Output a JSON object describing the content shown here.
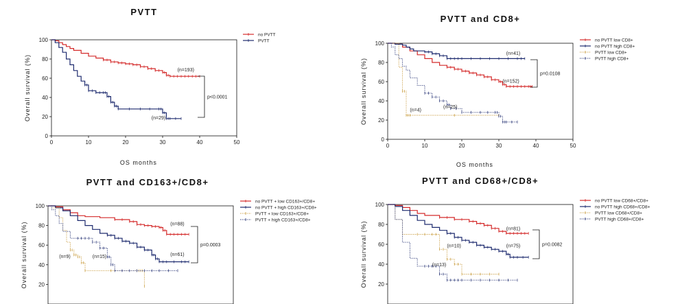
{
  "chart_data": [
    {
      "type": "line",
      "title": "PVTT",
      "xlabel": "OS months",
      "ylabel": "Overall survival (%)",
      "xlim": [
        0,
        50
      ],
      "ylim": [
        0,
        100
      ],
      "xticks": [
        "0",
        "10",
        "20",
        "30",
        "40",
        "50"
      ],
      "yticks": [
        "0",
        "20",
        "40",
        "60",
        "80",
        "100"
      ],
      "legend_position": "top-right",
      "pvalue": "p<0.0001",
      "series": [
        {
          "name": "no PVTT",
          "color": "#d42a2a",
          "style": "solid",
          "x": [
            0,
            1,
            2,
            3,
            4,
            5,
            6,
            8,
            10,
            12,
            14,
            16,
            18,
            20,
            22,
            24,
            26,
            28,
            30,
            31,
            32,
            34,
            36,
            38,
            40
          ],
          "y": [
            100,
            99,
            97,
            95,
            93,
            91,
            89,
            86,
            83,
            81,
            79,
            77,
            76,
            75,
            74,
            72,
            70,
            68,
            66,
            63,
            62,
            62,
            62,
            62,
            62
          ],
          "label": "(n=193)",
          "label_at": [
            34,
            67
          ]
        },
        {
          "name": "PVTT",
          "color": "#1d2a6e",
          "style": "solid",
          "x": [
            0,
            1,
            2,
            3,
            4,
            5,
            6,
            7,
            8,
            9,
            10,
            12,
            14,
            15,
            16,
            17,
            18,
            24,
            29,
            30,
            31,
            32,
            35
          ],
          "y": [
            100,
            97,
            92,
            87,
            80,
            74,
            68,
            62,
            57,
            53,
            47,
            45,
            45,
            41,
            35,
            31,
            28,
            28,
            28,
            24,
            18,
            18,
            18
          ],
          "label": "(n=29)",
          "label_at": [
            27,
            17
          ]
        }
      ]
    },
    {
      "type": "line",
      "title": "PVTT and CD8+",
      "xlabel": "OS months",
      "ylabel": "Overall survival (%)",
      "xlim": [
        0,
        50
      ],
      "ylim": [
        0,
        100
      ],
      "xticks": [
        "0",
        "10",
        "20",
        "30",
        "40",
        "50"
      ],
      "yticks": [
        "0",
        "20",
        "40",
        "60",
        "80",
        "100"
      ],
      "legend_position": "top-right",
      "pvalue": "p=0.0108",
      "series": [
        {
          "name": "no PVTT low CD8+",
          "color": "#d42a2a",
          "style": "solid",
          "x": [
            0,
            2,
            4,
            6,
            8,
            10,
            12,
            14,
            16,
            18,
            20,
            22,
            24,
            26,
            28,
            30,
            31,
            32,
            34,
            36,
            38,
            39
          ],
          "y": [
            100,
            99,
            96,
            92,
            88,
            84,
            80,
            77,
            75,
            73,
            71,
            69,
            67,
            65,
            62,
            60,
            57,
            55,
            55,
            55,
            55,
            55
          ],
          "label": "(n=152)",
          "label_at": [
            31,
            59
          ]
        },
        {
          "name": "no PVTT high CD8+",
          "color": "#1d2a6e",
          "style": "solid",
          "x": [
            0,
            2,
            4,
            5,
            6,
            7,
            10,
            12,
            14,
            16,
            18,
            20,
            25,
            30,
            35,
            37
          ],
          "y": [
            100,
            99,
            98,
            96,
            94,
            92,
            91,
            89,
            87,
            84,
            84,
            84,
            84,
            84,
            84,
            84
          ],
          "label": "(n=41)",
          "label_at": [
            32,
            88
          ]
        },
        {
          "name": "PVTT low CD8+",
          "color": "#c89a3a",
          "style": "dotted",
          "x": [
            0,
            3,
            4,
            5,
            6,
            30
          ],
          "y": [
            100,
            75,
            50,
            25,
            25,
            25
          ],
          "label": "(n=4)",
          "label_at": [
            6,
            29
          ]
        },
        {
          "name": "PVTT high CD8+",
          "color": "#1d2a6e",
          "style": "dotted",
          "x": [
            0,
            1,
            2,
            3,
            4,
            5,
            6,
            8,
            10,
            12,
            14,
            16,
            17,
            20,
            25,
            29,
            30,
            31,
            32,
            35
          ],
          "y": [
            100,
            96,
            88,
            84,
            76,
            72,
            64,
            56,
            48,
            44,
            40,
            36,
            32,
            28,
            28,
            28,
            24,
            18,
            18,
            18
          ],
          "label": "(n=25)",
          "label_at": [
            15,
            32
          ]
        }
      ]
    },
    {
      "type": "line",
      "title": "PVTT and CD163+/CD8+",
      "xlabel": "",
      "ylabel": "Overall survival (%)",
      "xlim": [
        0,
        50
      ],
      "ylim": [
        0,
        100
      ],
      "xticks": [],
      "yticks": [
        "20",
        "40",
        "60",
        "80",
        "100"
      ],
      "legend_position": "top-right",
      "pvalue": "p=0.0003",
      "series": [
        {
          "name": "no PVTT + low CD163+/CD8+",
          "color": "#d42a2a",
          "style": "solid",
          "x": [
            0,
            2,
            4,
            6,
            8,
            10,
            14,
            18,
            22,
            24,
            26,
            28,
            30,
            31,
            32,
            34,
            36,
            38
          ],
          "y": [
            100,
            99,
            96,
            93,
            90,
            89,
            88,
            86,
            84,
            81,
            80,
            79,
            78,
            75,
            71,
            71,
            71,
            71
          ],
          "label": "(n=88)",
          "label_at": [
            33,
            80
          ]
        },
        {
          "name": "no PVTT + high CD163+/CD8+",
          "color": "#1d2a6e",
          "style": "solid",
          "x": [
            0,
            2,
            4,
            6,
            8,
            10,
            12,
            14,
            16,
            18,
            20,
            22,
            24,
            26,
            28,
            29,
            30,
            32,
            36,
            38
          ],
          "y": [
            100,
            98,
            95,
            90,
            85,
            80,
            76,
            72,
            70,
            67,
            64,
            62,
            58,
            55,
            50,
            46,
            43,
            43,
            43,
            43
          ],
          "label": "(n=61)",
          "label_at": [
            33,
            49
          ]
        },
        {
          "name": "PVTT + low CD163+/CD8+",
          "color": "#c89a3a",
          "style": "dotted",
          "x": [
            0,
            1,
            3,
            4,
            5,
            6,
            7,
            8,
            9,
            10,
            24,
            25,
            26
          ],
          "y": [
            100,
            98,
            88,
            75,
            63,
            55,
            50,
            48,
            42,
            34,
            34,
            34,
            18
          ],
          "label": "(n=9)",
          "label_at": [
            3,
            47
          ]
        },
        {
          "name": "PVTT + high CD163+/CD8+",
          "color": "#1d2a6e",
          "style": "dotted",
          "x": [
            0,
            1,
            2,
            3,
            4,
            6,
            8,
            10,
            12,
            14,
            16,
            17,
            18,
            22,
            26,
            30,
            35
          ],
          "y": [
            100,
            96,
            90,
            82,
            74,
            67,
            67,
            67,
            63,
            57,
            48,
            40,
            34,
            34,
            34,
            34,
            34
          ],
          "label": "(n=15)",
          "label_at": [
            12,
            47
          ]
        }
      ]
    },
    {
      "type": "line",
      "title": "PVTT and CD68+/CD8+",
      "xlabel": "",
      "ylabel": "Overall survival (%)",
      "xlim": [
        0,
        50
      ],
      "ylim": [
        0,
        100
      ],
      "xticks": [],
      "yticks": [
        "20",
        "40",
        "60",
        "80",
        "100"
      ],
      "legend_position": "top-right",
      "pvalue": "p=0.0082",
      "series": [
        {
          "name": "no PVTT low CD68+/CD8+",
          "color": "#d42a2a",
          "style": "solid",
          "x": [
            0,
            2,
            4,
            6,
            8,
            10,
            14,
            18,
            22,
            24,
            26,
            28,
            30,
            32,
            34,
            36,
            38
          ],
          "y": [
            100,
            99,
            97,
            94,
            91,
            89,
            87,
            85,
            83,
            81,
            79,
            76,
            73,
            71,
            71,
            71,
            71
          ],
          "label": "(n=81)",
          "label_at": [
            32,
            74
          ]
        },
        {
          "name": "no PVTT high CD68+/CD8+",
          "color": "#1d2a6e",
          "style": "solid",
          "x": [
            0,
            2,
            4,
            6,
            8,
            10,
            12,
            14,
            16,
            18,
            20,
            22,
            24,
            26,
            28,
            30,
            32,
            33,
            35,
            38
          ],
          "y": [
            100,
            98,
            94,
            89,
            84,
            80,
            77,
            74,
            71,
            67,
            64,
            62,
            59,
            57,
            55,
            53,
            50,
            47,
            47,
            47
          ],
          "label": "(n=75)",
          "label_at": [
            32,
            57
          ]
        },
        {
          "name": "PVTT low CD68+/CD8+",
          "color": "#c89a3a",
          "style": "dotted",
          "x": [
            0,
            2,
            4,
            6,
            8,
            12,
            14,
            16,
            18,
            20,
            25,
            30
          ],
          "y": [
            100,
            85,
            70,
            70,
            70,
            70,
            55,
            45,
            40,
            30,
            30,
            30
          ],
          "label": "(n=10)",
          "label_at": [
            16,
            57
          ]
        },
        {
          "name": "PVTT high CD68+/CD8+",
          "color": "#1d2a6e",
          "style": "dotted",
          "x": [
            0,
            2,
            4,
            6,
            8,
            10,
            12,
            14,
            16,
            18,
            20,
            25,
            30,
            35
          ],
          "y": [
            100,
            85,
            62,
            46,
            38,
            38,
            38,
            30,
            24,
            24,
            24,
            24,
            24,
            24
          ],
          "label": "(n=13)",
          "label_at": [
            12,
            38
          ]
        }
      ]
    }
  ]
}
